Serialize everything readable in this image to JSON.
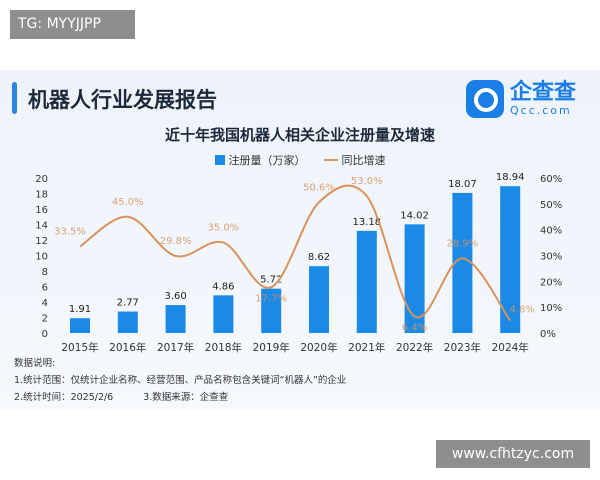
{
  "watermark_top": "TG: MYYJJPP",
  "watermark_bottom": "www.cfhtzyc.com",
  "report_title": "机器人行业发展报告",
  "logo": {
    "name": "企查查",
    "sub": "Qcc.com"
  },
  "notes": {
    "heading": "数据说明:",
    "line1": "1.统计范围：仅统计企业名称、经营范围、产品名称包含关键词“机器人”的企业",
    "line2a": "2.统计时间：2025/2/6",
    "line2b": "3.数据来源：企查查"
  },
  "chart_data": {
    "type": "bar",
    "title": "近十年我国机器人相关企业注册量及增速",
    "categories": [
      "2015年",
      "2016年",
      "2017年",
      "2018年",
      "2019年",
      "2020年",
      "2021年",
      "2022年",
      "2023年",
      "2024年"
    ],
    "series": [
      {
        "name": "注册量（万家）",
        "type": "bar",
        "axis": "left",
        "color": "#1a8ae6",
        "values": [
          1.91,
          2.77,
          3.6,
          4.86,
          5.72,
          8.62,
          13.18,
          14.02,
          18.07,
          18.94
        ],
        "labels": [
          "1.91",
          "2.77",
          "3.60",
          "4.86",
          "5.72",
          "8.62",
          "13.18",
          "14.02",
          "18.07",
          "18.94"
        ]
      },
      {
        "name": "同比增速",
        "type": "line",
        "axis": "right",
        "color": "#d9925a",
        "values": [
          33.5,
          45.0,
          29.8,
          35.0,
          17.7,
          50.6,
          53.0,
          6.4,
          28.9,
          4.8
        ],
        "labels": [
          "33.5%",
          "45.0%",
          "29.8%",
          "35.0%",
          "17.7%",
          "50.6%",
          "53.0%",
          "6.4%",
          "28.9%",
          "4.8%"
        ]
      }
    ],
    "ylim": [
      0,
      20
    ],
    "yticks": [
      "0",
      "2",
      "4",
      "6",
      "8",
      "10",
      "12",
      "14",
      "16",
      "18",
      "20"
    ],
    "y2lim": [
      0,
      60
    ],
    "y2ticks": [
      "0%",
      "10%",
      "20%",
      "30%",
      "40%",
      "50%",
      "60%"
    ],
    "legend": "top-center",
    "grid": false
  }
}
